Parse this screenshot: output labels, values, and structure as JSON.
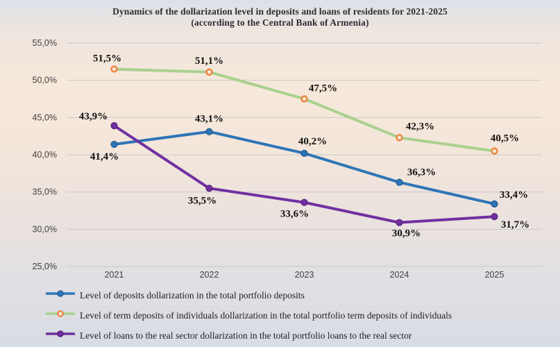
{
  "title": {
    "line1": "Dynamics of the dollarization level in deposits and loans of residents for 2021-2025",
    "line2": "(according to the Central Bank of Armenia)"
  },
  "chart_data": {
    "type": "line",
    "categories": [
      "2021",
      "2022",
      "2023",
      "2024",
      "2025"
    ],
    "y_axis": {
      "min": 25,
      "max": 55,
      "step": 5,
      "tick_labels": [
        "55,0%",
        "50,0%",
        "45,0%",
        "40,0%",
        "35,0%",
        "30,0%",
        "25,0%"
      ]
    },
    "grid": true,
    "legend_position": "bottom",
    "colors": {
      "gridline": "#c7c9ce",
      "axis_text": "#404040",
      "data_label_text": "#111111"
    },
    "series": [
      {
        "name": "Level of deposits dollarization in the total portfolio deposits",
        "color": "#2E75B6",
        "marker": "circle-filled",
        "marker_fill": "#2E75B6",
        "marker_stroke": "#24598C",
        "values": [
          41.4,
          43.1,
          40.2,
          36.3,
          33.4
        ],
        "labels": [
          "41,4%",
          "43,1%",
          "40,2%",
          "36,3%",
          "33,4%"
        ],
        "label_offsets": [
          [
            -14,
            18
          ],
          [
            0,
            -18
          ],
          [
            12,
            -17
          ],
          [
            32,
            -14
          ],
          [
            28,
            -13
          ]
        ]
      },
      {
        "name": "Level of term deposits of individuals dollarization in the total portfolio term deposits of individuals",
        "color": "#A9D18E",
        "marker": "circle-hollow",
        "marker_fill": "#F5E3D1",
        "marker_stroke": "#ED7D31",
        "values": [
          51.5,
          51.1,
          47.5,
          42.3,
          40.5
        ],
        "labels": [
          "51,5%",
          "51,1%",
          "47,5%",
          "42,3%",
          "40,5%"
        ],
        "label_offsets": [
          [
            -10,
            -15
          ],
          [
            0,
            -16
          ],
          [
            27,
            -15
          ],
          [
            30,
            -16
          ],
          [
            15,
            -18
          ]
        ]
      },
      {
        "name": "Level of loans to the real sector dollarization in the total portfolio loans to the real sector",
        "color": "#7030A0",
        "marker": "circle-filled",
        "marker_fill": "#7030A0",
        "marker_stroke": "#53217A",
        "values": [
          43.9,
          35.5,
          33.6,
          30.9,
          31.7
        ],
        "labels": [
          "43,9%",
          "35,5%",
          "33,6%",
          "30,9%",
          "31,7%"
        ],
        "label_offsets": [
          [
            -30,
            -13
          ],
          [
            -10,
            18
          ],
          [
            -14,
            17
          ],
          [
            10,
            16
          ],
          [
            30,
            12
          ]
        ]
      }
    ]
  }
}
